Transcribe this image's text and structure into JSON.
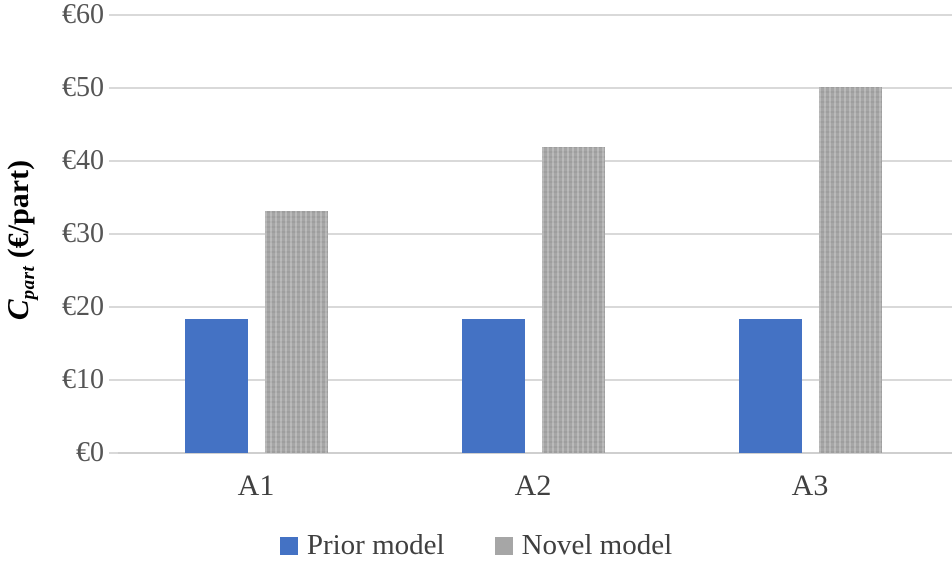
{
  "chart_data": {
    "type": "bar",
    "title": "",
    "categories": [
      "A1",
      "A2",
      "A3"
    ],
    "series": [
      {
        "name": "Prior model",
        "color": "#4472C4",
        "values": [
          18.4,
          18.4,
          18.4
        ]
      },
      {
        "name": "Novel model",
        "color": "#A6A6A6",
        "values": [
          33.2,
          41.9,
          50.1
        ]
      }
    ],
    "ylabel_main": "C",
    "ylabel_sub": "part",
    "ylabel_unit": " (€/part)",
    "ytick_prefix": "€",
    "yticks": [
      0,
      10,
      20,
      30,
      40,
      50,
      60
    ],
    "ylim": [
      0,
      60
    ],
    "xlabel": "",
    "grid": true,
    "legend_position": "bottom-center",
    "colors": {
      "gridline": "#D9D9D9",
      "tick_text": "#555555",
      "category_text": "#404040",
      "axis_title_text": "#000000"
    }
  }
}
